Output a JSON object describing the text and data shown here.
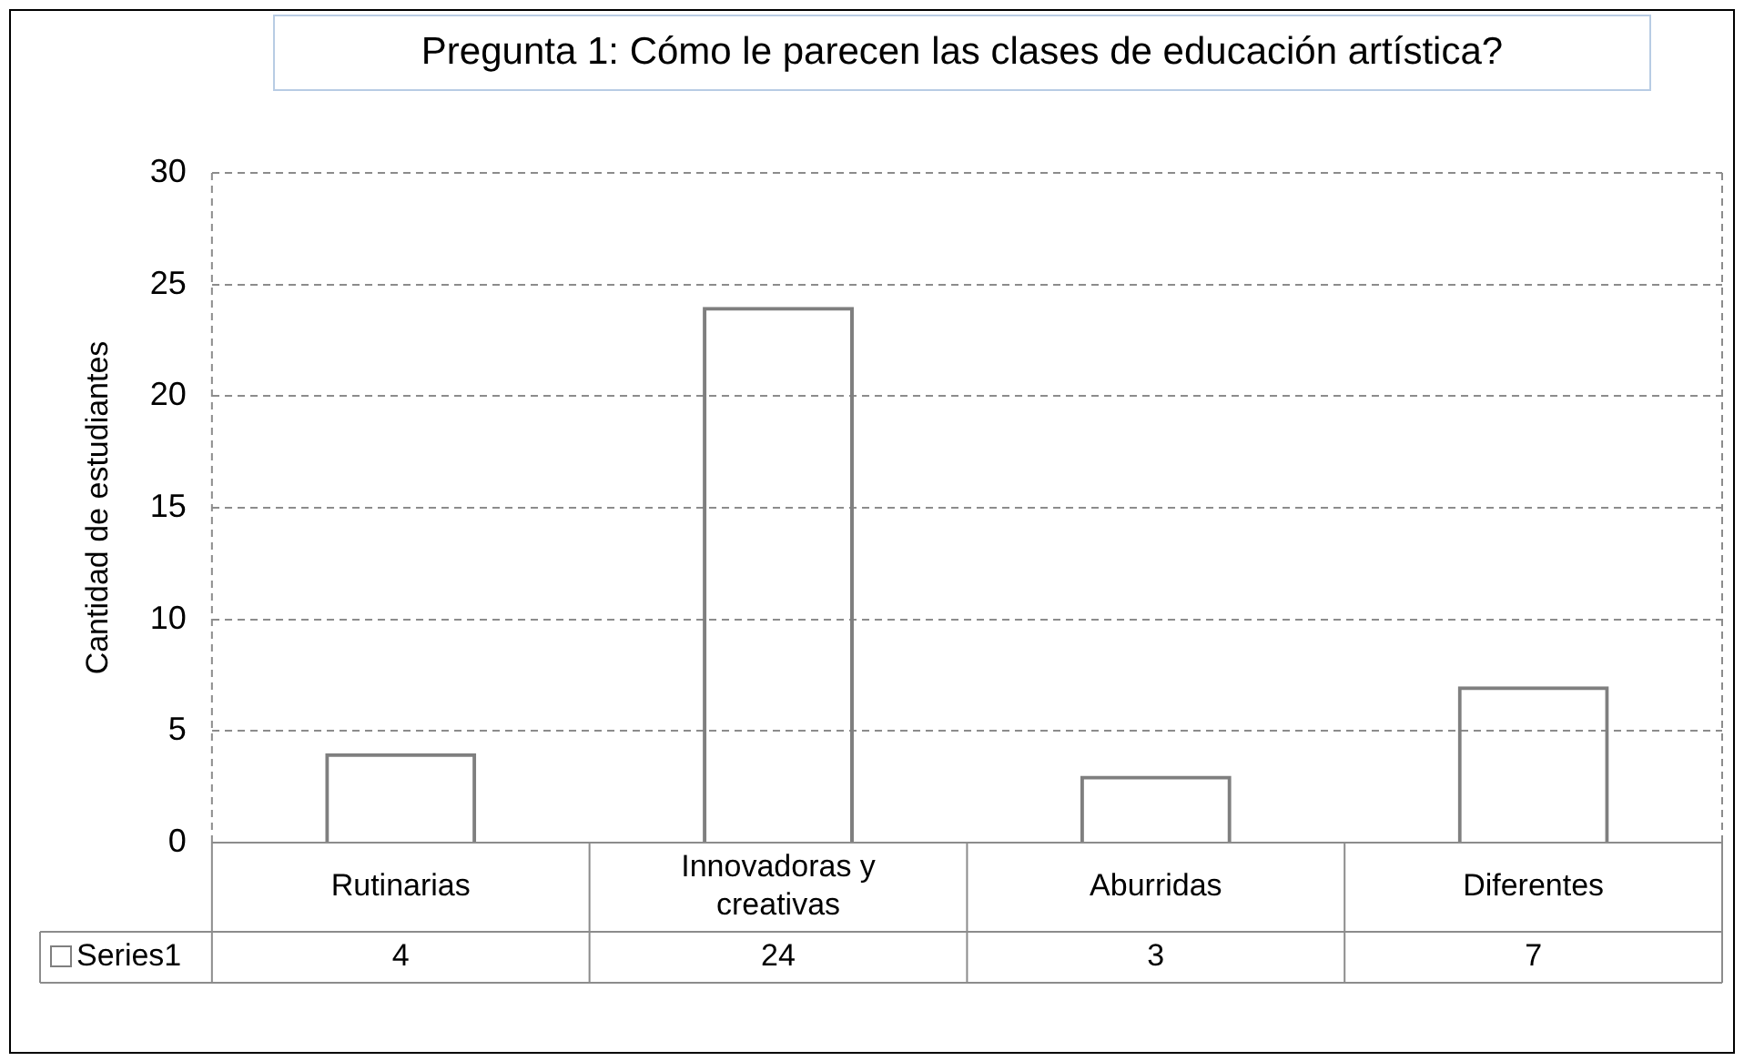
{
  "chart_data": {
    "type": "bar",
    "title": "Pregunta 1: Cómo le parecen las clases de educación artística?",
    "ylabel": "Cantidad de estudiantes",
    "categories": [
      "Rutinarias",
      "Innovadoras y creativas",
      "Aburridas",
      "Diferentes"
    ],
    "series": [
      {
        "name": "Series1",
        "color": "#7f7f7f",
        "values": [
          4,
          24,
          3,
          7
        ]
      }
    ],
    "ylim": [
      0,
      30
    ],
    "yticks": [
      0,
      5,
      10,
      15,
      20,
      25,
      30
    ],
    "grid": "y",
    "data_labels": true
  }
}
